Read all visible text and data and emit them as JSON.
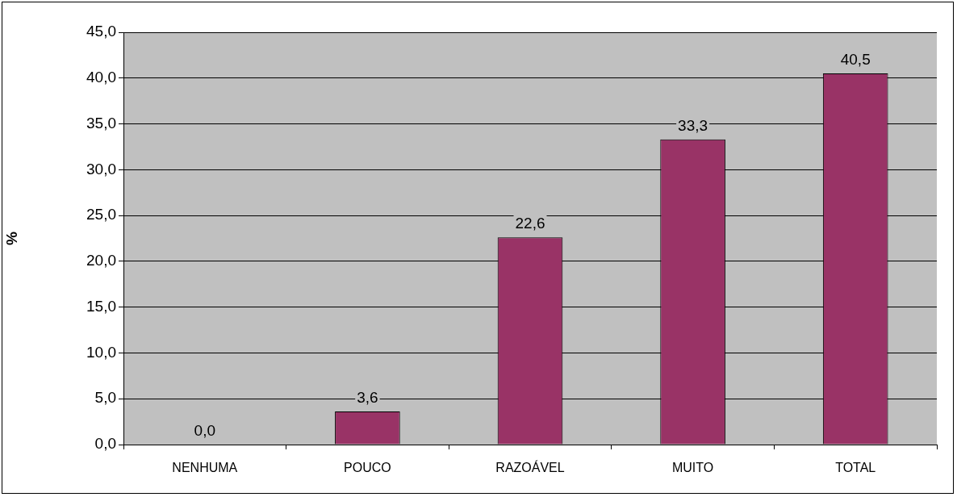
{
  "chart_data": {
    "type": "bar",
    "ylabel": "%",
    "categories": [
      "NENHUMA",
      "POUCO",
      "RAZOÁVEL",
      "MUITO",
      "TOTAL"
    ],
    "values": [
      0.0,
      3.6,
      22.6,
      33.3,
      40.5
    ],
    "value_labels": [
      "0,0",
      "3,6",
      "22,6",
      "33,3",
      "40,5"
    ],
    "color": "#993366",
    "ylim": [
      0,
      45
    ],
    "yticks": [
      {
        "value": 0,
        "label": "0,0"
      },
      {
        "value": 5,
        "label": "5,0"
      },
      {
        "value": 10,
        "label": "10,0"
      },
      {
        "value": 15,
        "label": "15,0"
      },
      {
        "value": 20,
        "label": "20,0"
      },
      {
        "value": 25,
        "label": "25,0"
      },
      {
        "value": 30,
        "label": "30,0"
      },
      {
        "value": 35,
        "label": "35,0"
      },
      {
        "value": 40,
        "label": "40,0"
      },
      {
        "value": 45,
        "label": "45,0"
      }
    ],
    "grid": "y",
    "legend": false
  }
}
